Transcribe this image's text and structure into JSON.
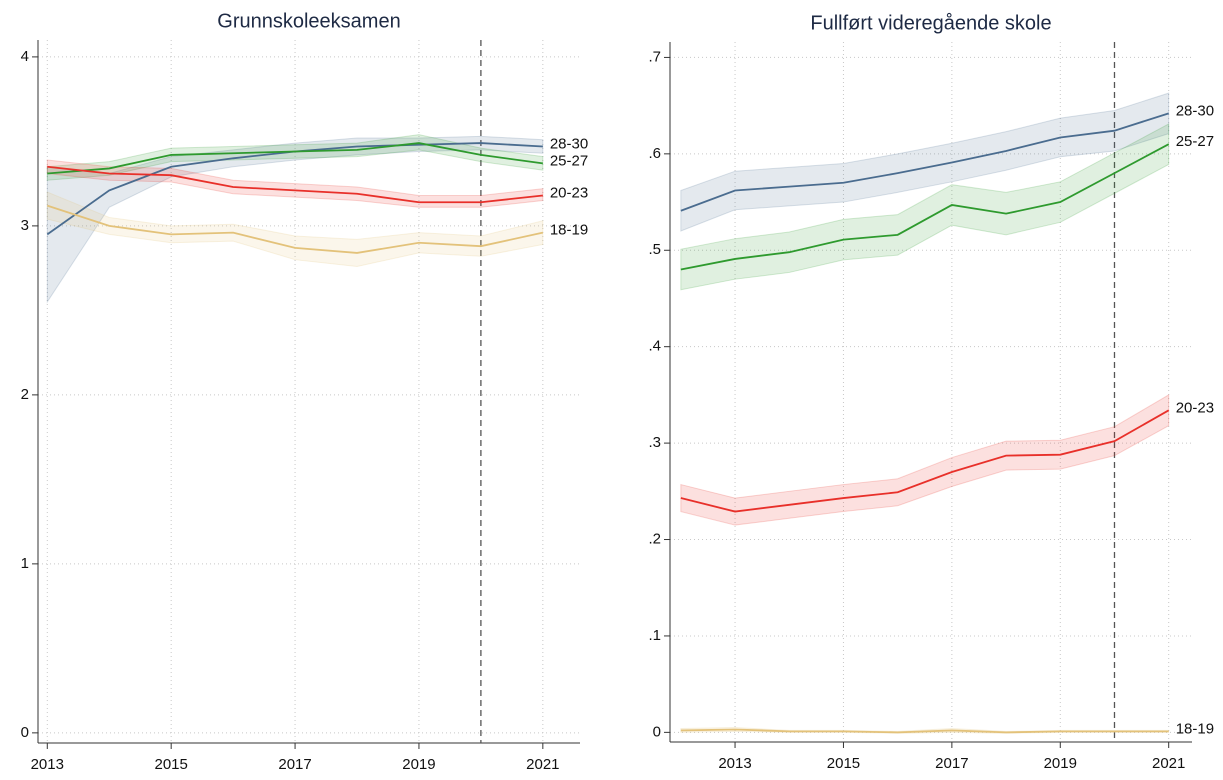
{
  "chart_data": [
    {
      "type": "line",
      "title": "Grunnskoleeksamen",
      "x": [
        2013,
        2014,
        2015,
        2016,
        2017,
        2018,
        2019,
        2020,
        2021
      ],
      "xlim": [
        2012.85,
        2021.6
      ],
      "ylim": [
        -0.06,
        4.1
      ],
      "xticks": [
        2013,
        2015,
        2017,
        2019,
        2021
      ],
      "yticks": [
        0,
        1,
        2,
        3,
        4
      ],
      "grid": true,
      "vline": 2020,
      "series": [
        {
          "name": "28-30",
          "color": "#4a6c8f",
          "values": [
            2.95,
            3.21,
            3.35,
            3.4,
            3.44,
            3.47,
            3.48,
            3.49,
            3.47
          ],
          "lower": [
            2.55,
            3.11,
            3.29,
            3.35,
            3.39,
            3.42,
            3.44,
            3.45,
            3.43
          ],
          "upper": [
            3.35,
            3.31,
            3.41,
            3.45,
            3.49,
            3.52,
            3.52,
            3.53,
            3.51
          ]
        },
        {
          "name": "25-27",
          "color": "#2e9a2e",
          "values": [
            3.31,
            3.34,
            3.42,
            3.43,
            3.44,
            3.45,
            3.49,
            3.42,
            3.37
          ],
          "lower": [
            3.27,
            3.3,
            3.38,
            3.39,
            3.4,
            3.41,
            3.45,
            3.38,
            3.33
          ],
          "upper": [
            3.35,
            3.38,
            3.46,
            3.47,
            3.48,
            3.49,
            3.54,
            3.46,
            3.41
          ]
        },
        {
          "name": "20-23",
          "color": "#e8302a",
          "values": [
            3.35,
            3.31,
            3.3,
            3.23,
            3.21,
            3.19,
            3.14,
            3.14,
            3.18
          ],
          "lower": [
            3.31,
            3.27,
            3.26,
            3.19,
            3.17,
            3.15,
            3.11,
            3.11,
            3.15
          ],
          "upper": [
            3.39,
            3.35,
            3.34,
            3.27,
            3.25,
            3.23,
            3.18,
            3.18,
            3.22
          ]
        },
        {
          "name": "18-19",
          "color": "#e3c27a",
          "values": [
            3.12,
            3.0,
            2.95,
            2.96,
            2.87,
            2.84,
            2.9,
            2.88,
            2.96
          ],
          "lower": [
            3.04,
            2.95,
            2.9,
            2.91,
            2.8,
            2.76,
            2.84,
            2.82,
            2.89
          ],
          "upper": [
            3.2,
            3.05,
            3.0,
            3.01,
            2.94,
            2.92,
            2.96,
            2.94,
            3.03
          ]
        }
      ]
    },
    {
      "type": "line",
      "title": "Fullført videregående skole",
      "x": [
        2012,
        2013,
        2014,
        2015,
        2016,
        2017,
        2018,
        2019,
        2020,
        2021
      ],
      "xlim": [
        2011.8,
        2021.43
      ],
      "ylim": [
        -0.01,
        0.716
      ],
      "xticks": [
        2013,
        2015,
        2017,
        2019,
        2021
      ],
      "yticks": [
        0,
        {
          "value": 0.1,
          "label": ".1"
        },
        {
          "value": 0.2,
          "label": ".2"
        },
        {
          "value": 0.3,
          "label": ".3"
        },
        {
          "value": 0.4,
          "label": ".4"
        },
        {
          "value": 0.5,
          "label": ".5"
        },
        {
          "value": 0.6,
          "label": ".6"
        },
        {
          "value": 0.7,
          "label": ".7"
        }
      ],
      "grid": true,
      "vline": 2020,
      "series": [
        {
          "name": "28-30",
          "color": "#4a6c8f",
          "values": [
            0.541,
            0.562,
            0.566,
            0.57,
            0.58,
            0.591,
            0.603,
            0.617,
            0.624,
            0.642
          ],
          "lower": [
            0.52,
            0.542,
            0.546,
            0.55,
            0.56,
            0.571,
            0.583,
            0.597,
            0.603,
            0.621
          ],
          "upper": [
            0.562,
            0.582,
            0.586,
            0.59,
            0.6,
            0.611,
            0.623,
            0.637,
            0.645,
            0.663
          ]
        },
        {
          "name": "25-27",
          "color": "#2e9a2e",
          "values": [
            0.48,
            0.491,
            0.498,
            0.511,
            0.516,
            0.547,
            0.538,
            0.55,
            0.58,
            0.61
          ],
          "lower": [
            0.459,
            0.47,
            0.477,
            0.49,
            0.495,
            0.526,
            0.516,
            0.529,
            0.559,
            0.589
          ],
          "upper": [
            0.501,
            0.512,
            0.519,
            0.532,
            0.537,
            0.568,
            0.56,
            0.571,
            0.601,
            0.631
          ]
        },
        {
          "name": "20-23",
          "color": "#e8302a",
          "values": [
            0.243,
            0.229,
            0.236,
            0.243,
            0.249,
            0.27,
            0.287,
            0.288,
            0.302,
            0.334
          ],
          "lower": [
            0.229,
            0.215,
            0.222,
            0.229,
            0.235,
            0.255,
            0.272,
            0.273,
            0.287,
            0.318
          ],
          "upper": [
            0.257,
            0.243,
            0.25,
            0.257,
            0.263,
            0.285,
            0.302,
            0.303,
            0.317,
            0.35
          ]
        },
        {
          "name": "18-19",
          "color": "#e3c27a",
          "values": [
            0.002,
            0.003,
            0.001,
            0.001,
            0.0,
            0.002,
            0.0,
            0.001,
            0.001,
            0.001
          ],
          "lower": [
            0.0,
            0.001,
            0.0,
            0.0,
            -0.001,
            0.0,
            -0.001,
            0.0,
            0.0,
            0.0
          ],
          "upper": [
            0.004,
            0.005,
            0.002,
            0.002,
            0.001,
            0.004,
            0.001,
            0.002,
            0.002,
            0.002
          ]
        }
      ]
    }
  ]
}
